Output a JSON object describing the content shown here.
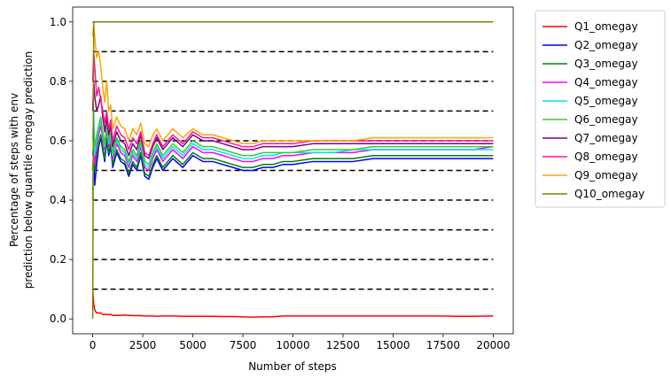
{
  "chart_data": {
    "type": "line",
    "title": "",
    "xlabel": "Number of steps",
    "ylabel_lines": [
      "Percentage of steps with env",
      "prediction below quantile omegay prediction"
    ],
    "xlim": [
      -1000,
      21000
    ],
    "ylim": [
      -0.05,
      1.05
    ],
    "x_ticks": [
      0,
      2500,
      5000,
      7500,
      10000,
      12500,
      15000,
      17500,
      20000
    ],
    "y_ticks": [
      0.0,
      0.2,
      0.4,
      0.6,
      0.8,
      1.0
    ],
    "grid": false,
    "legend_placement": "outside-right",
    "reference_lines": {
      "style": "dashed",
      "color": "#000000",
      "x_range": [
        0,
        20000
      ],
      "y_values": [
        0.1,
        0.2,
        0.3,
        0.4,
        0.5,
        0.6,
        0.7,
        0.8,
        0.9,
        1.0
      ]
    },
    "x": [
      0,
      50,
      100,
      200,
      300,
      400,
      500,
      600,
      700,
      800,
      900,
      1000,
      1200,
      1400,
      1600,
      1800,
      2000,
      2200,
      2400,
      2600,
      2800,
      3000,
      3200,
      3500,
      4000,
      4500,
      5000,
      5500,
      6000,
      6500,
      7000,
      7500,
      8000,
      8500,
      9000,
      9500,
      10000,
      11000,
      12000,
      13000,
      14000,
      15000,
      16000,
      17000,
      18000,
      19000,
      20000
    ],
    "series": [
      {
        "name": "Q1_omegay",
        "color": "#ff0000",
        "values": [
          0.1,
          0.05,
          0.03,
          0.02,
          0.02,
          0.02,
          0.015,
          0.015,
          0.015,
          0.015,
          0.015,
          0.012,
          0.012,
          0.012,
          0.013,
          0.012,
          0.011,
          0.011,
          0.011,
          0.01,
          0.01,
          0.01,
          0.009,
          0.01,
          0.01,
          0.009,
          0.009,
          0.009,
          0.009,
          0.008,
          0.008,
          0.007,
          0.006,
          0.007,
          0.007,
          0.01,
          0.01,
          0.01,
          0.01,
          0.01,
          0.01,
          0.01,
          0.01,
          0.01,
          0.009,
          0.009,
          0.01
        ]
      },
      {
        "name": "Q2_omegay",
        "color": "#0000ff",
        "values": [
          0.5,
          0.55,
          0.45,
          0.52,
          0.58,
          0.61,
          0.57,
          0.53,
          0.6,
          0.55,
          0.58,
          0.51,
          0.56,
          0.53,
          0.52,
          0.48,
          0.52,
          0.5,
          0.55,
          0.48,
          0.47,
          0.51,
          0.54,
          0.5,
          0.54,
          0.51,
          0.55,
          0.53,
          0.53,
          0.52,
          0.51,
          0.5,
          0.5,
          0.51,
          0.51,
          0.52,
          0.52,
          0.53,
          0.53,
          0.53,
          0.54,
          0.54,
          0.54,
          0.54,
          0.54,
          0.54,
          0.54
        ]
      },
      {
        "name": "Q3_omegay",
        "color": "#008000",
        "values": [
          0.5,
          0.57,
          0.5,
          0.55,
          0.59,
          0.62,
          0.58,
          0.54,
          0.61,
          0.56,
          0.59,
          0.52,
          0.57,
          0.54,
          0.53,
          0.49,
          0.53,
          0.51,
          0.56,
          0.49,
          0.48,
          0.52,
          0.55,
          0.51,
          0.55,
          0.52,
          0.56,
          0.54,
          0.54,
          0.53,
          0.52,
          0.51,
          0.51,
          0.52,
          0.52,
          0.53,
          0.53,
          0.54,
          0.54,
          0.54,
          0.55,
          0.55,
          0.55,
          0.55,
          0.55,
          0.55,
          0.55
        ]
      },
      {
        "name": "Q4_omegay",
        "color": "#ff00ff",
        "values": [
          0.55,
          0.6,
          0.52,
          0.58,
          0.62,
          0.65,
          0.61,
          0.57,
          0.64,
          0.58,
          0.61,
          0.54,
          0.59,
          0.56,
          0.55,
          0.51,
          0.55,
          0.53,
          0.58,
          0.51,
          0.5,
          0.54,
          0.57,
          0.53,
          0.57,
          0.54,
          0.58,
          0.56,
          0.56,
          0.55,
          0.54,
          0.53,
          0.53,
          0.54,
          0.54,
          0.55,
          0.55,
          0.56,
          0.56,
          0.56,
          0.57,
          0.57,
          0.57,
          0.57,
          0.57,
          0.57,
          0.58
        ]
      },
      {
        "name": "Q5_omegay",
        "color": "#00e5ee",
        "values": [
          0.6,
          0.7,
          0.55,
          0.6,
          0.64,
          0.67,
          0.62,
          0.58,
          0.65,
          0.59,
          0.62,
          0.55,
          0.6,
          0.57,
          0.56,
          0.52,
          0.56,
          0.54,
          0.59,
          0.52,
          0.51,
          0.55,
          0.58,
          0.54,
          0.58,
          0.55,
          0.59,
          0.57,
          0.57,
          0.56,
          0.55,
          0.54,
          0.54,
          0.55,
          0.55,
          0.56,
          0.56,
          0.56,
          0.56,
          0.57,
          0.57,
          0.57,
          0.57,
          0.57,
          0.57,
          0.57,
          0.57
        ]
      },
      {
        "name": "Q6_omegay",
        "color": "#32cd32",
        "values": [
          0.4,
          0.65,
          0.58,
          0.62,
          0.65,
          0.68,
          0.63,
          0.59,
          0.66,
          0.6,
          0.63,
          0.56,
          0.61,
          0.58,
          0.57,
          0.53,
          0.57,
          0.55,
          0.6,
          0.53,
          0.52,
          0.56,
          0.59,
          0.55,
          0.59,
          0.56,
          0.6,
          0.58,
          0.58,
          0.57,
          0.56,
          0.55,
          0.55,
          0.56,
          0.56,
          0.56,
          0.56,
          0.57,
          0.57,
          0.57,
          0.58,
          0.58,
          0.58,
          0.58,
          0.58,
          0.58,
          0.58
        ]
      },
      {
        "name": "Q7_omegay",
        "color": "#800080",
        "values": [
          0.7,
          0.8,
          0.75,
          0.7,
          0.72,
          0.75,
          0.68,
          0.63,
          0.68,
          0.62,
          0.65,
          0.58,
          0.63,
          0.6,
          0.59,
          0.55,
          0.59,
          0.57,
          0.62,
          0.55,
          0.54,
          0.58,
          0.61,
          0.57,
          0.61,
          0.58,
          0.62,
          0.6,
          0.6,
          0.59,
          0.58,
          0.57,
          0.57,
          0.58,
          0.58,
          0.58,
          0.58,
          0.59,
          0.59,
          0.59,
          0.59,
          0.59,
          0.59,
          0.59,
          0.59,
          0.59,
          0.59
        ]
      },
      {
        "name": "Q8_omegay",
        "color": "#ff1493",
        "values": [
          0.8,
          0.9,
          0.85,
          0.75,
          0.78,
          0.74,
          0.7,
          0.66,
          0.7,
          0.64,
          0.67,
          0.6,
          0.65,
          0.62,
          0.61,
          0.57,
          0.61,
          0.59,
          0.63,
          0.56,
          0.55,
          0.59,
          0.62,
          0.58,
          0.62,
          0.59,
          0.63,
          0.61,
          0.61,
          0.6,
          0.59,
          0.58,
          0.58,
          0.59,
          0.59,
          0.59,
          0.59,
          0.6,
          0.6,
          0.6,
          0.6,
          0.6,
          0.6,
          0.6,
          0.6,
          0.6,
          0.6
        ]
      },
      {
        "name": "Q9_omegay",
        "color": "#ffa500",
        "values": [
          0.95,
          0.99,
          0.95,
          0.88,
          0.9,
          0.85,
          0.78,
          0.73,
          0.8,
          0.7,
          0.72,
          0.64,
          0.68,
          0.65,
          0.64,
          0.6,
          0.64,
          0.62,
          0.66,
          0.59,
          0.58,
          0.62,
          0.64,
          0.6,
          0.64,
          0.61,
          0.64,
          0.62,
          0.62,
          0.61,
          0.6,
          0.59,
          0.59,
          0.6,
          0.6,
          0.6,
          0.6,
          0.6,
          0.6,
          0.6,
          0.61,
          0.61,
          0.61,
          0.61,
          0.61,
          0.61,
          0.61
        ]
      },
      {
        "name": "Q10_omegay",
        "color": "#808000",
        "values": [
          0.0,
          1.0,
          1.0,
          1.0,
          1.0,
          1.0,
          1.0,
          1.0,
          1.0,
          1.0,
          1.0,
          1.0,
          1.0,
          1.0,
          1.0,
          1.0,
          1.0,
          1.0,
          1.0,
          1.0,
          1.0,
          1.0,
          1.0,
          1.0,
          1.0,
          1.0,
          1.0,
          1.0,
          1.0,
          1.0,
          1.0,
          1.0,
          1.0,
          1.0,
          1.0,
          1.0,
          1.0,
          1.0,
          1.0,
          1.0,
          1.0,
          1.0,
          1.0,
          1.0,
          1.0,
          1.0,
          1.0
        ]
      }
    ]
  }
}
